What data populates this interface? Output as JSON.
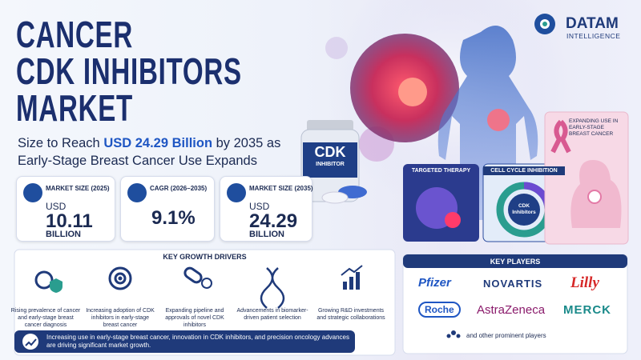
{
  "brand": {
    "name": "DATAM",
    "tagline": "INTELLIGENCE"
  },
  "header": {
    "title_lines": [
      "CANCER",
      "CDK INHIBITORS",
      "MARKET"
    ],
    "subtitle": {
      "before": "Size to Reach ",
      "highlight": "USD 24.29 Billion",
      "after": " by 2035 as Early-Stage Breast Cancer Use Expands"
    }
  },
  "stats": [
    {
      "label": "MARKET SIZE (2025)",
      "prefix": "USD",
      "value": "10.11",
      "unit": "BILLION"
    },
    {
      "label": "CAGR (2026–2035)",
      "value": "9.1%"
    },
    {
      "label": "MARKET SIZE (2035)",
      "prefix": "USD",
      "value": "24.29",
      "unit": "BILLION"
    }
  ],
  "visuals": {
    "bottle_title": "CDK",
    "bottle_sub": "INHIBITOR",
    "panel_1": "TARGETED THERAPY",
    "panel_2": "CELL CYCLE INHIBITION",
    "cycle_center": "CDK Inhibitors",
    "panel_3": "EXPANDING USE IN EARLY-STAGE BREAST CANCER"
  },
  "drivers": {
    "title": "KEY GROWTH DRIVERS",
    "items": [
      "Rising prevalence of cancer and early-stage breast cancer diagnosis",
      "Increasing adoption of CDK inhibitors in early-stage breast cancer",
      "Expanding pipeline and approvals of novel CDK inhibitors",
      "Advancements in biomarker-driven patient selection",
      "Growing R&D investments and strategic collaborations"
    ],
    "banner": "Increasing use in early-stage breast cancer, innovation in CDK inhibitors, and precision oncology advances are driving significant market growth."
  },
  "players": {
    "title": "KEY PLAYERS",
    "names": [
      "Pfizer",
      "NOVARTIS",
      "Lilly",
      "Roche",
      "AstraZeneca",
      "MERCK"
    ],
    "footer": "and other prominent players"
  }
}
